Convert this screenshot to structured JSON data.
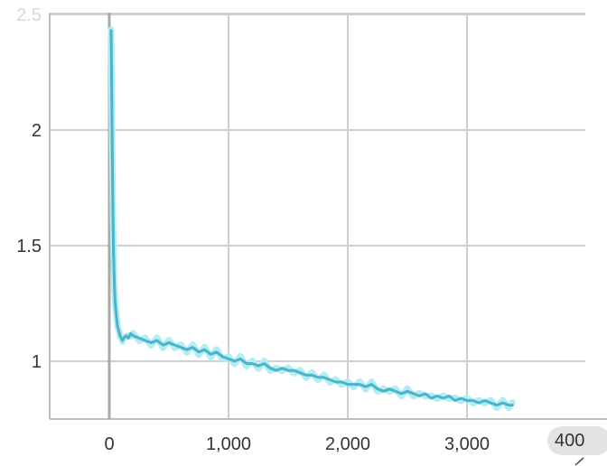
{
  "chart_data": {
    "type": "line",
    "title": "",
    "xlabel": "",
    "ylabel": "",
    "xlim": [
      -500,
      4000
    ],
    "ylim": [
      0.75,
      2.5
    ],
    "x_ticks": [
      {
        "value": 0,
        "label": "0"
      },
      {
        "value": 1000,
        "label": "1,000"
      },
      {
        "value": 2000,
        "label": "2,000"
      },
      {
        "value": 3000,
        "label": "3,000"
      }
    ],
    "y_ticks": [
      {
        "value": 1,
        "label": "1"
      },
      {
        "value": 1.5,
        "label": "1.5"
      },
      {
        "value": 2,
        "label": "2"
      },
      {
        "value": 2.5,
        "label": "2.5"
      }
    ],
    "grid": true,
    "series": [
      {
        "color": "#4bb4c8",
        "raw_color": "#b3ecf5",
        "x": [
          15,
          20,
          25,
          30,
          35,
          40,
          45,
          50,
          60,
          70,
          80,
          90,
          100,
          110,
          120,
          140,
          160,
          180,
          200,
          250,
          300,
          350,
          400,
          450,
          500,
          550,
          600,
          650,
          700,
          750,
          800,
          850,
          900,
          950,
          1000,
          1050,
          1100,
          1150,
          1200,
          1250,
          1300,
          1350,
          1400,
          1450,
          1500,
          1550,
          1600,
          1650,
          1700,
          1750,
          1800,
          1850,
          1900,
          1950,
          2000,
          2050,
          2100,
          2150,
          2200,
          2250,
          2300,
          2350,
          2400,
          2450,
          2500,
          2550,
          2600,
          2650,
          2700,
          2750,
          2800,
          2850,
          2900,
          2950,
          3000,
          3050,
          3100,
          3150,
          3200,
          3250,
          3300,
          3350,
          3380
        ],
        "y": [
          2.43,
          2.2,
          1.9,
          1.65,
          1.48,
          1.38,
          1.3,
          1.25,
          1.19,
          1.15,
          1.13,
          1.11,
          1.1,
          1.09,
          1.1,
          1.11,
          1.1,
          1.12,
          1.11,
          1.1,
          1.09,
          1.08,
          1.09,
          1.07,
          1.08,
          1.07,
          1.06,
          1.05,
          1.06,
          1.04,
          1.05,
          1.03,
          1.04,
          1.02,
          1.01,
          1.0,
          1.01,
          0.99,
          0.99,
          0.98,
          0.99,
          0.97,
          0.96,
          0.97,
          0.96,
          0.96,
          0.95,
          0.94,
          0.94,
          0.93,
          0.93,
          0.92,
          0.91,
          0.91,
          0.9,
          0.9,
          0.9,
          0.89,
          0.9,
          0.88,
          0.87,
          0.88,
          0.87,
          0.86,
          0.87,
          0.86,
          0.85,
          0.86,
          0.84,
          0.85,
          0.84,
          0.85,
          0.83,
          0.84,
          0.83,
          0.83,
          0.82,
          0.83,
          0.82,
          0.81,
          0.82,
          0.81,
          0.81
        ]
      }
    ]
  },
  "footer": {
    "badge_label": "400",
    "corner_icon": "resize-corner-icon"
  }
}
